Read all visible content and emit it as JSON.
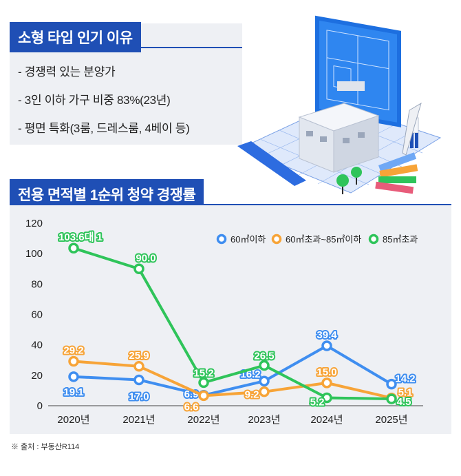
{
  "header": {
    "title1": "소형 타입 인기 이유",
    "reasons": [
      "- 경쟁력 있는 분양가",
      "- 3인 이하 가구 비중 83%(23년)",
      "- 평면 특화(3룸, 드레스룸, 4베이 등)"
    ],
    "title2": "전용 면적별 1순위 청약 경쟁률"
  },
  "source": "※ 출처 : 부동산R114",
  "colors": {
    "blue": "#3f8ef0",
    "orange": "#f7a438",
    "green": "#2fc45a",
    "title_bg": "#1f4fb5"
  },
  "chart_data": {
    "type": "line",
    "categories": [
      "2020년",
      "2021년",
      "2022년",
      "2023년",
      "2024년",
      "2025년"
    ],
    "ylim": [
      0,
      120
    ],
    "yticks": [
      "0",
      "20",
      "40",
      "60",
      "80",
      "100",
      "120"
    ],
    "grid": false,
    "legend_position": "top-right",
    "series": [
      {
        "name": "60㎡이하",
        "color": "#3f8ef0",
        "values": [
          19.1,
          17.0,
          6.9,
          16.2,
          39.4,
          14.2
        ],
        "labels": [
          "19.1",
          "17.0",
          "6.9",
          "16.2",
          "39.4",
          "14.2"
        ]
      },
      {
        "name": "60㎡초과~85㎡이하",
        "color": "#f7a438",
        "values": [
          29.2,
          25.9,
          6.6,
          9.2,
          15.0,
          5.1
        ],
        "labels": [
          "29.2",
          "25.9",
          "6.6",
          "9.2",
          "15.0",
          "5.1"
        ]
      },
      {
        "name": "85㎡초과",
        "color": "#2fc45a",
        "values": [
          103.6,
          90.0,
          15.2,
          26.5,
          5.2,
          4.5
        ],
        "labels": [
          "103.6대 1",
          "90.0",
          "15.2",
          "26.5",
          "5.2",
          "4.5"
        ]
      }
    ]
  }
}
